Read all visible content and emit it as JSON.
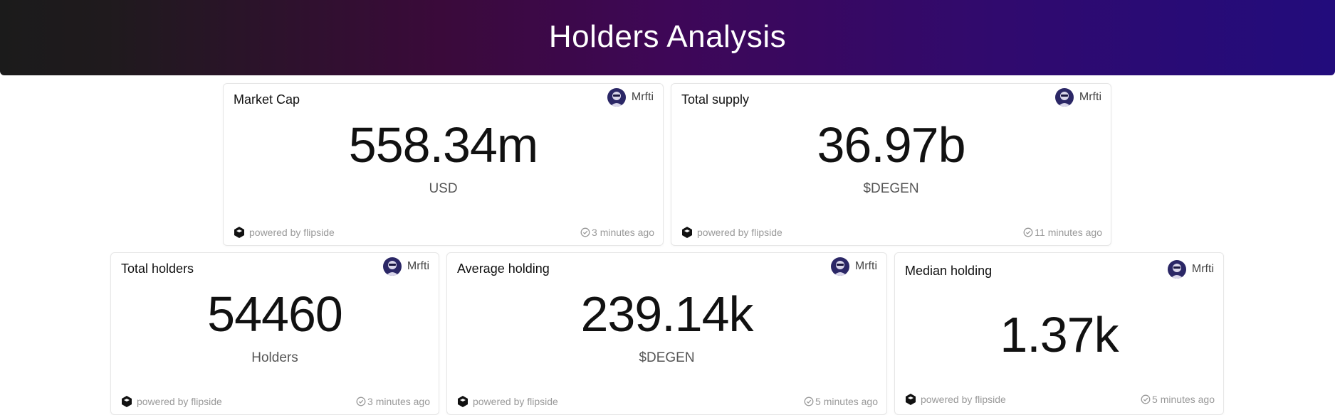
{
  "header": {
    "title": "Holders Analysis"
  },
  "cards": [
    {
      "title": "Market Cap",
      "author": "Mrfti",
      "value": "558.34m",
      "unit": "USD",
      "powered": "powered by flipside",
      "updated": "3 minutes ago"
    },
    {
      "title": "Total supply",
      "author": "Mrfti",
      "value": "36.97b",
      "unit": "$DEGEN",
      "powered": "powered by flipside",
      "updated": "11 minutes ago"
    },
    {
      "title": "Total holders",
      "author": "Mrfti",
      "value": "54460",
      "unit": "Holders",
      "powered": "powered by flipside",
      "updated": "3 minutes ago"
    },
    {
      "title": "Average holding",
      "author": "Mrfti",
      "value": "239.14k",
      "unit": "$DEGEN",
      "powered": "powered by flipside",
      "updated": "5 minutes ago"
    },
    {
      "title": "Median holding",
      "author": "Mrfti",
      "value": "1.37k",
      "unit": "",
      "powered": "powered by flipside",
      "updated": "5 minutes ago"
    }
  ],
  "icons": {
    "avatar": "user-avatar-icon",
    "powered": "flipside-logo-icon",
    "updated": "check-circle-icon"
  },
  "colors": {
    "banner_start": "#1b1b1b",
    "banner_mid": "#3e0757",
    "banner_end": "#220c7c",
    "avatar_bg": "#2b2766"
  }
}
